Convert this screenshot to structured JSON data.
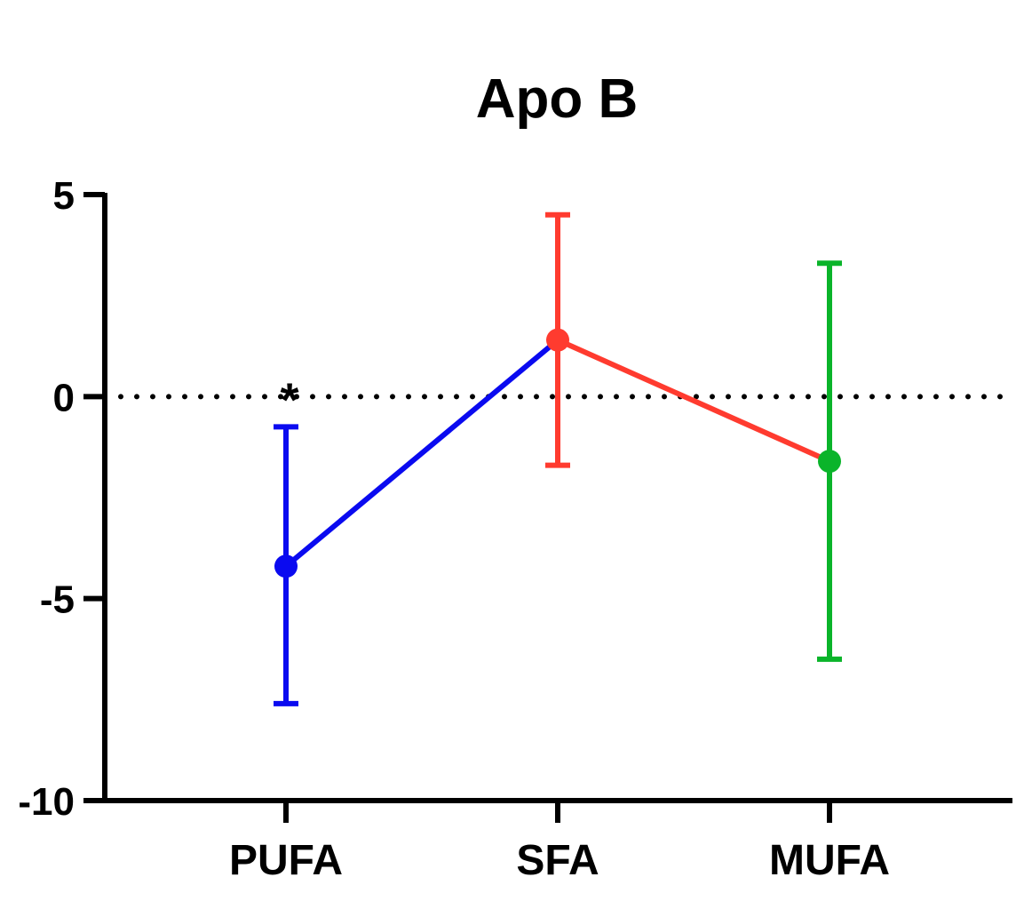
{
  "chart_data": {
    "type": "line",
    "title": "Apo B",
    "xlabel": "",
    "ylabel": "",
    "categories": [
      "PUFA",
      "SFA",
      "MUFA"
    ],
    "ylim": [
      -10,
      5
    ],
    "yticks": [
      5,
      0,
      -5,
      -10
    ],
    "ytick_labels": [
      "5",
      "0",
      "-5",
      "-10"
    ],
    "reference_line": {
      "y": 0,
      "style": "dotted"
    },
    "points": [
      {
        "category": "PUFA",
        "value": -4.2,
        "err_low": -7.6,
        "err_high": -0.75,
        "color": "#0a0af0"
      },
      {
        "category": "SFA",
        "value": 1.4,
        "err_low": -1.7,
        "err_high": 4.5,
        "color": "#ff3b2f"
      },
      {
        "category": "MUFA",
        "value": -1.6,
        "err_low": -6.5,
        "err_high": 3.3,
        "color": "#0ab42a"
      }
    ],
    "segments": [
      {
        "from": "PUFA",
        "to": "SFA",
        "color": "#0a0af0"
      },
      {
        "from": "SFA",
        "to": "MUFA",
        "color": "#ff3b2f"
      }
    ],
    "annotations": [
      {
        "category": "PUFA",
        "text": "*"
      }
    ],
    "grid": false,
    "legend": "none"
  }
}
